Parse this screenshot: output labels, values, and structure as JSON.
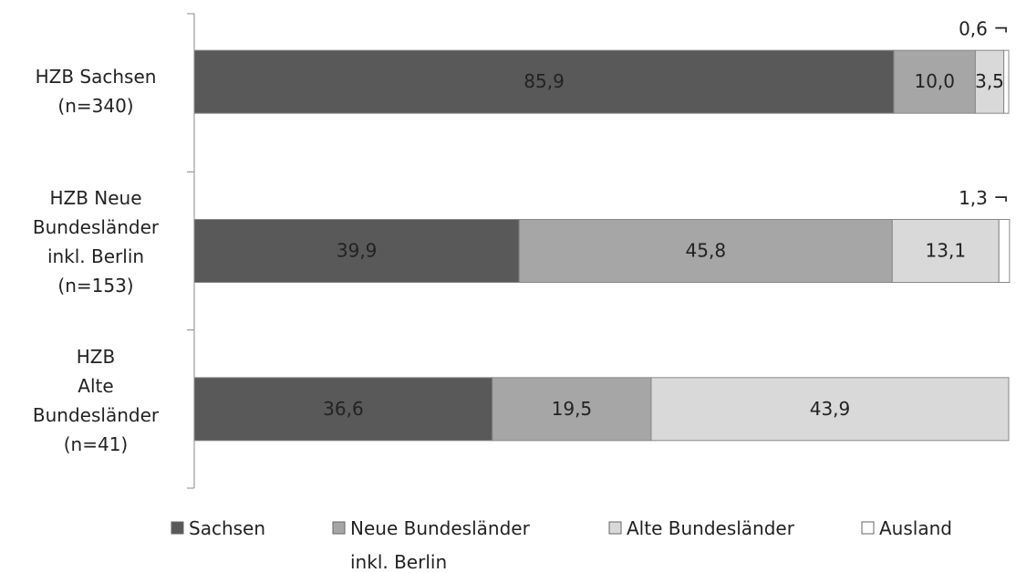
{
  "chart_data": {
    "type": "stacked_bar_horizontal",
    "categories": [
      "HZB Sachsen\n(n=340)",
      "HZB Neue\nBundesländer\ninkl. Berlin\n(n=153)",
      "HZB\nAlte\nBundesländer\n(n=41)"
    ],
    "xlim": [
      0,
      100
    ],
    "series": [
      {
        "name": "Sachsen",
        "color": "#595959",
        "values": [
          85.9,
          39.9,
          36.6
        ],
        "value_labels": [
          "85,9",
          "39,9",
          "36,6"
        ]
      },
      {
        "name": "Neue Bundesländer\ninkl. Berlin",
        "color": "#a6a6a6",
        "values": [
          10.0,
          45.8,
          19.5
        ],
        "value_labels": [
          "10,0",
          "45,8",
          "19,5"
        ]
      },
      {
        "name": "Alte Bundesländer",
        "color": "#d9d9d9",
        "values": [
          3.5,
          13.1,
          43.9
        ],
        "value_labels": [
          "3,5",
          "13,1",
          "43,9"
        ]
      },
      {
        "name": "Ausland",
        "color": "#ffffff",
        "values": [
          0.6,
          1.3,
          null
        ],
        "value_labels": [
          "0,6 ¬",
          "1,3 ¬",
          null
        ]
      }
    ],
    "legend": "bottom"
  }
}
